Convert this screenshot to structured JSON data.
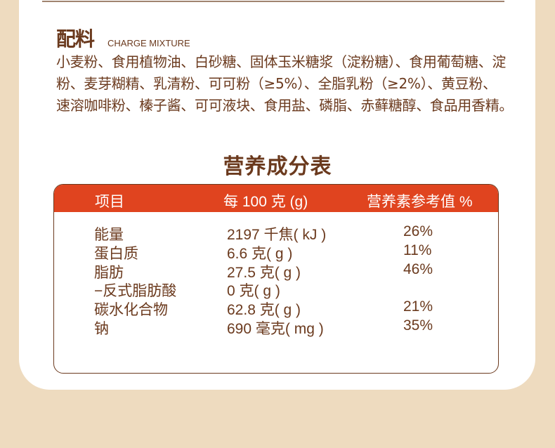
{
  "ingredients": {
    "title": "配料",
    "subtitle": "CHARGE MIXTURE",
    "lines": [
      "小麦粉、食用植物油、白砂糖、固体玉米糖浆（淀粉糖）、食用葡萄糖、淀",
      "粉、麦芽糊精、乳清粉、可可粉（≥5%）、全脂乳粉（≥2%）、黄豆粉、",
      "速溶咖啡粉、榛子酱、可可液块、食用盐、磷脂、赤藓糖醇、食品用香精。"
    ]
  },
  "nutrition": {
    "title": "营养成分表",
    "headers": [
      "项目",
      "每 100 克 (g)",
      "营养素参考值 %"
    ],
    "rows": [
      [
        "能量",
        "2197 千焦( kJ )",
        "26%"
      ],
      [
        "蛋白质",
        "6.6 克( g )",
        "11%"
      ],
      [
        "脂肪",
        "27.5 克( g )",
        "46%"
      ],
      [
        "−反式脂肪酸",
        "0 克( g )",
        ""
      ],
      [
        "碳水化合物",
        "62.8 克( g )",
        "21%"
      ],
      [
        "钠",
        "690 毫克( mg )",
        "35%"
      ]
    ]
  },
  "colors": {
    "text": "#6b3a1e",
    "header": "#e0441f",
    "background": "#eedbbf"
  }
}
